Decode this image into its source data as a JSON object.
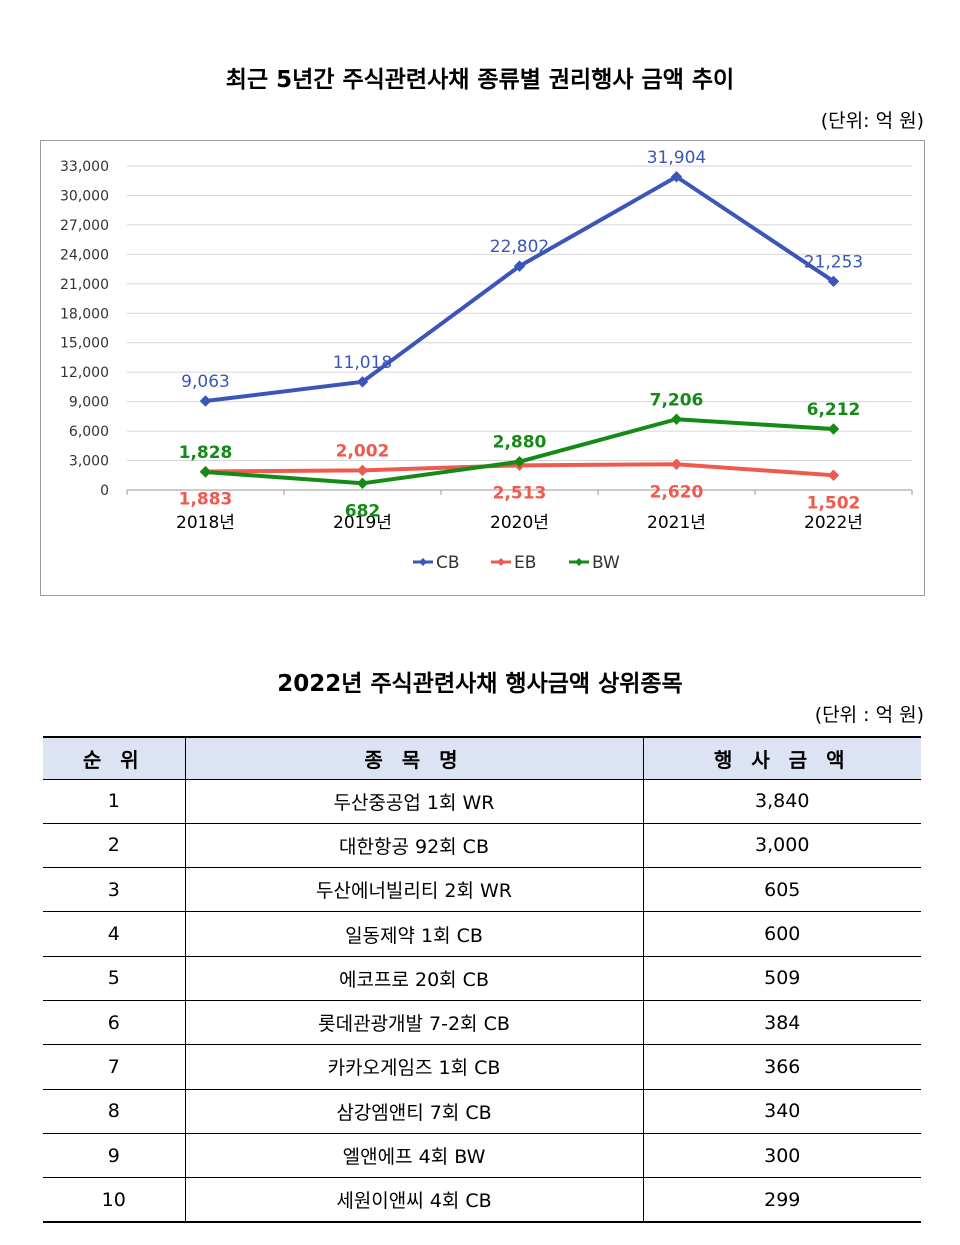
{
  "chart_title": "최근 5년간 주식관련사채 종류별 권리행사 금액 추이",
  "chart_unit": "(단위: 억 원)",
  "chart_data": {
    "type": "line",
    "title": "최근 5년간 주식관련사채 종류별 권리행사 금액 추이",
    "xlabel": "",
    "ylabel": "",
    "categories": [
      "2018년",
      "2019년",
      "2020년",
      "2021년",
      "2022년"
    ],
    "yticks": [
      0,
      3000,
      6000,
      9000,
      12000,
      15000,
      18000,
      21000,
      24000,
      27000,
      30000,
      33000
    ],
    "ytick_labels": [
      "0",
      "3,000",
      "6,000",
      "9,000",
      "12,000",
      "15,000",
      "18,000",
      "21,000",
      "24,000",
      "27,000",
      "30,000",
      "33,000"
    ],
    "ylim": [
      0,
      33000
    ],
    "grid": true,
    "legend_position": "bottom",
    "series": [
      {
        "name": "CB",
        "color": "#3b55b8",
        "values": [
          9063,
          11018,
          22802,
          31904,
          21253
        ],
        "labels": [
          "9,063",
          "11,018",
          "22,802",
          "31,904",
          "21,253"
        ],
        "label_pos": [
          "above",
          "above",
          "above",
          "above",
          "above"
        ]
      },
      {
        "name": "EB",
        "color": "#ef5a4e",
        "values": [
          1883,
          2002,
          2513,
          2620,
          1502
        ],
        "labels": [
          "1,883",
          "2,002",
          "2,513",
          "2,620",
          "1,502"
        ],
        "label_pos": [
          "below",
          "above",
          "below",
          "below",
          "below"
        ]
      },
      {
        "name": "BW",
        "color": "#168a16",
        "values": [
          1828,
          682,
          2880,
          7206,
          6212
        ],
        "labels": [
          "1,828",
          "682",
          "2,880",
          "7,206",
          "6,212"
        ],
        "label_pos": [
          "above",
          "below",
          "above",
          "above",
          "above"
        ]
      }
    ]
  },
  "table_title": "2022년 주식관련사채 행사금액 상위종목",
  "table_unit": "(단위 : 억 원)",
  "table": {
    "headers": [
      "순 위",
      "종 목 명",
      "행 사 금 액"
    ],
    "rows": [
      {
        "rank": "1",
        "name": "두산중공업 1회 WR",
        "amount": "3,840"
      },
      {
        "rank": "2",
        "name": "대한항공 92회 CB",
        "amount": "3,000"
      },
      {
        "rank": "3",
        "name": "두산에너빌리티 2회 WR",
        "amount": "605"
      },
      {
        "rank": "4",
        "name": "일동제약 1회 CB",
        "amount": "600"
      },
      {
        "rank": "5",
        "name": "에코프로 20회 CB",
        "amount": "509"
      },
      {
        "rank": "6",
        "name": "롯데관광개발 7-2회 CB",
        "amount": "384"
      },
      {
        "rank": "7",
        "name": "카카오게임즈 1회 CB",
        "amount": "366"
      },
      {
        "rank": "8",
        "name": "삼강엠앤티 7회 CB",
        "amount": "340"
      },
      {
        "rank": "9",
        "name": "엘앤에프 4회 BW",
        "amount": "300"
      },
      {
        "rank": "10",
        "name": "세원이앤씨 4회 CB",
        "amount": "299"
      }
    ]
  }
}
